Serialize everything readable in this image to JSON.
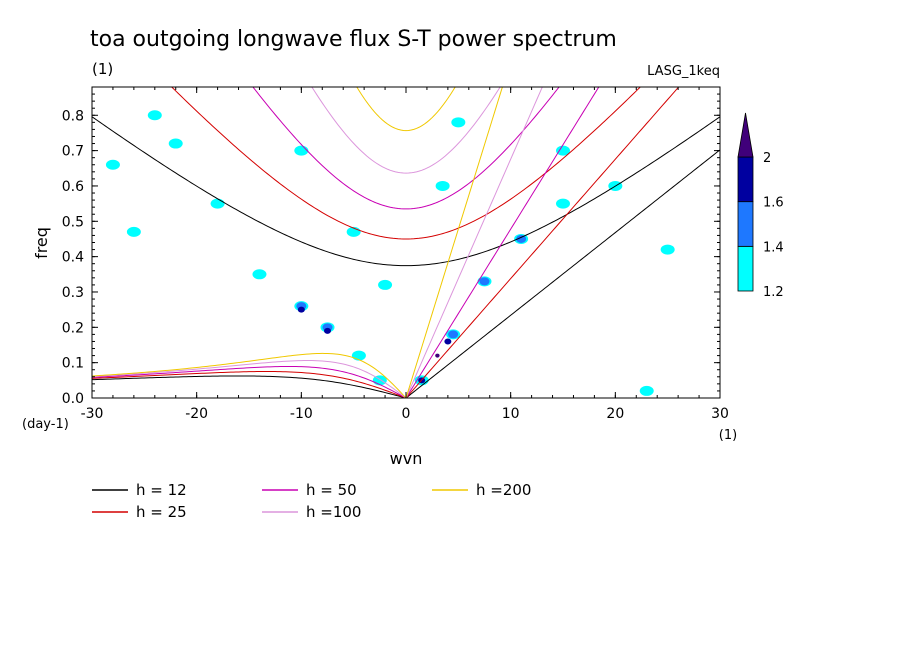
{
  "chart_data": {
    "type": "line",
    "title": "toa outgoing longwave flux S-T power spectrum",
    "title_units": "(1)",
    "source_label": "LASG_1keq",
    "xlabel": "wvn",
    "xlabel_units": "(1)",
    "ylabel": "freq",
    "ylabel_units": "(day-1)",
    "xlim": [
      -30,
      30
    ],
    "ylim": [
      0,
      0.88
    ],
    "x_ticks": [
      -30,
      -20,
      -10,
      0,
      10,
      20,
      30
    ],
    "x_tick_labels": [
      "-30",
      "-20",
      "-10",
      "0",
      "10",
      "20",
      "30"
    ],
    "y_ticks": [
      0,
      0.1,
      0.2,
      0.3,
      0.4,
      0.5,
      0.6,
      0.7,
      0.8
    ],
    "y_tick_labels": [
      "0.0",
      "0.1",
      "0.2",
      "0.3",
      "0.4",
      "0.5",
      "0.6",
      "0.7",
      "0.8"
    ],
    "colorbar": {
      "levels": [
        1.2,
        1.4,
        1.6,
        2
      ],
      "level_labels": [
        "1.2",
        "1.4",
        "1.6",
        "2"
      ],
      "colors": [
        "#00ffff",
        "#1e78ff",
        "#0000a0",
        "#40007a"
      ]
    },
    "series": [
      {
        "name": "h = 12",
        "h": 12,
        "color": "#000000"
      },
      {
        "name": "h = 25",
        "h": 25,
        "color": "#d40000"
      },
      {
        "name": "h = 50",
        "h": 50,
        "color": "#c800b4"
      },
      {
        "name": "h =100",
        "h": 100,
        "color": "#dc96dc"
      },
      {
        "name": "h =200",
        "h": 200,
        "color": "#f0c800"
      }
    ],
    "contour_regions": [
      {
        "level": 1.2,
        "x": 4.5,
        "y": 0.18
      },
      {
        "level": 1.4,
        "x": 4.5,
        "y": 0.18
      },
      {
        "level": 1.6,
        "x": 4.0,
        "y": 0.16
      },
      {
        "level": 2,
        "x": 3.0,
        "y": 0.12
      },
      {
        "level": 1.2,
        "x": 1.5,
        "y": 0.05
      },
      {
        "level": 1.6,
        "x": 1.5,
        "y": 0.05
      },
      {
        "level": 1.2,
        "x": 7.5,
        "y": 0.33
      },
      {
        "level": 1.4,
        "x": 7.5,
        "y": 0.33
      },
      {
        "level": 1.2,
        "x": 11,
        "y": 0.45
      },
      {
        "level": 1.4,
        "x": 11,
        "y": 0.45
      },
      {
        "level": 1.2,
        "x": 15,
        "y": 0.55
      },
      {
        "level": 1.2,
        "x": -10,
        "y": 0.26
      },
      {
        "level": 1.4,
        "x": -10,
        "y": 0.26
      },
      {
        "level": 1.6,
        "x": -10,
        "y": 0.25
      },
      {
        "level": 1.2,
        "x": -7.5,
        "y": 0.2
      },
      {
        "level": 1.4,
        "x": -7.5,
        "y": 0.2
      },
      {
        "level": 1.6,
        "x": -7.5,
        "y": 0.19
      },
      {
        "level": 1.2,
        "x": -4.5,
        "y": 0.12
      },
      {
        "level": 1.2,
        "x": -2.5,
        "y": 0.05
      },
      {
        "level": 1.2,
        "x": -14,
        "y": 0.35
      },
      {
        "level": 1.2,
        "x": -26,
        "y": 0.47
      },
      {
        "level": 1.2,
        "x": -24,
        "y": 0.8
      },
      {
        "level": 1.2,
        "x": -22,
        "y": 0.72
      },
      {
        "level": 1.2,
        "x": -28,
        "y": 0.66
      },
      {
        "level": 1.2,
        "x": -18,
        "y": 0.55
      },
      {
        "level": 1.2,
        "x": -10,
        "y": 0.7
      },
      {
        "level": 1.2,
        "x": 5,
        "y": 0.78
      },
      {
        "level": 1.2,
        "x": 15,
        "y": 0.7
      },
      {
        "level": 1.2,
        "x": 20,
        "y": 0.6
      },
      {
        "level": 1.2,
        "x": 25,
        "y": 0.42
      },
      {
        "level": 1.2,
        "x": -2,
        "y": 0.32
      },
      {
        "level": 1.2,
        "x": 3.5,
        "y": 0.6
      },
      {
        "level": 1.2,
        "x": -5,
        "y": 0.47
      },
      {
        "level": 1.2,
        "x": 23,
        "y": 0.02
      }
    ]
  }
}
